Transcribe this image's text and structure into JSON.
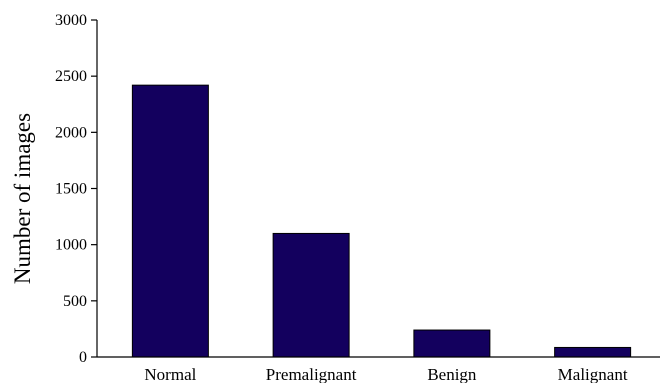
{
  "chart_data": {
    "type": "bar",
    "title": "",
    "xlabel": "",
    "ylabel": "Number of images",
    "categories": [
      "Normal",
      "Premalignant",
      "Benign",
      "Malignant"
    ],
    "values": [
      2420,
      1100,
      240,
      85
    ],
    "ylim": [
      0,
      3000
    ],
    "yticks": [
      "0",
      "500",
      "1000",
      "1500",
      "2000",
      "2500",
      "3000"
    ],
    "grid": false,
    "legend": "none",
    "bar_color": "#13005e"
  }
}
